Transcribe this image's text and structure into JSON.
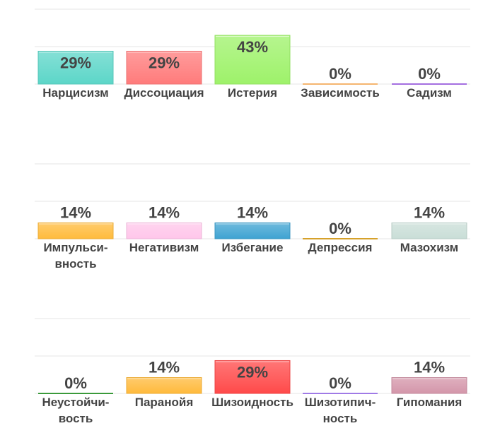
{
  "chart_data": {
    "type": "bar",
    "ylim": [
      0,
      50
    ],
    "groups": [
      {
        "items": [
          {
            "label": [
              "Нарцисизм"
            ],
            "value": 29,
            "value_label": "29%",
            "color": "#5cd6c8"
          },
          {
            "label": [
              "Диссоциация"
            ],
            "value": 29,
            "value_label": "29%",
            "color": "#ff7b7b"
          },
          {
            "label": [
              "Истерия"
            ],
            "value": 43,
            "value_label": "43%",
            "color": "#9ef26a"
          },
          {
            "label": [
              "Зависимость"
            ],
            "value": 0,
            "value_label": "0%",
            "color": "#f5b56f"
          },
          {
            "label": [
              "Садизм"
            ],
            "value": 0,
            "value_label": "0%",
            "color": "#a46ee0"
          }
        ]
      },
      {
        "items": [
          {
            "label": [
              "Импульси-",
              "вность"
            ],
            "value": 14,
            "value_label": "14%",
            "color": "#ffbb3c"
          },
          {
            "label": [
              "Негативизм"
            ],
            "value": 14,
            "value_label": "14%",
            "color": "#ffc6ea"
          },
          {
            "label": [
              "Избегание"
            ],
            "value": 14,
            "value_label": "14%",
            "color": "#3fa3d2"
          },
          {
            "label": [
              "Депрессия"
            ],
            "value": 0,
            "value_label": "0%",
            "color": "#d6a12a"
          },
          {
            "label": [
              "Мазохизм"
            ],
            "value": 14,
            "value_label": "14%",
            "color": "#c9ded7"
          }
        ]
      },
      {
        "items": [
          {
            "label": [
              "Неустойчи-",
              "вость"
            ],
            "value": 0,
            "value_label": "0%",
            "color": "#3a9a3a"
          },
          {
            "label": [
              "Паранойя"
            ],
            "value": 14,
            "value_label": "14%",
            "color": "#ffba3c"
          },
          {
            "label": [
              "Шизоидность"
            ],
            "value": 29,
            "value_label": "29%",
            "color": "#ff4a4a"
          },
          {
            "label": [
              "Шизотипич-",
              "ность"
            ],
            "value": 0,
            "value_label": "0%",
            "color": "#a07ae6"
          },
          {
            "label": [
              "Гипомания"
            ],
            "value": 14,
            "value_label": "14%",
            "color": "#d496aa"
          }
        ]
      }
    ]
  }
}
